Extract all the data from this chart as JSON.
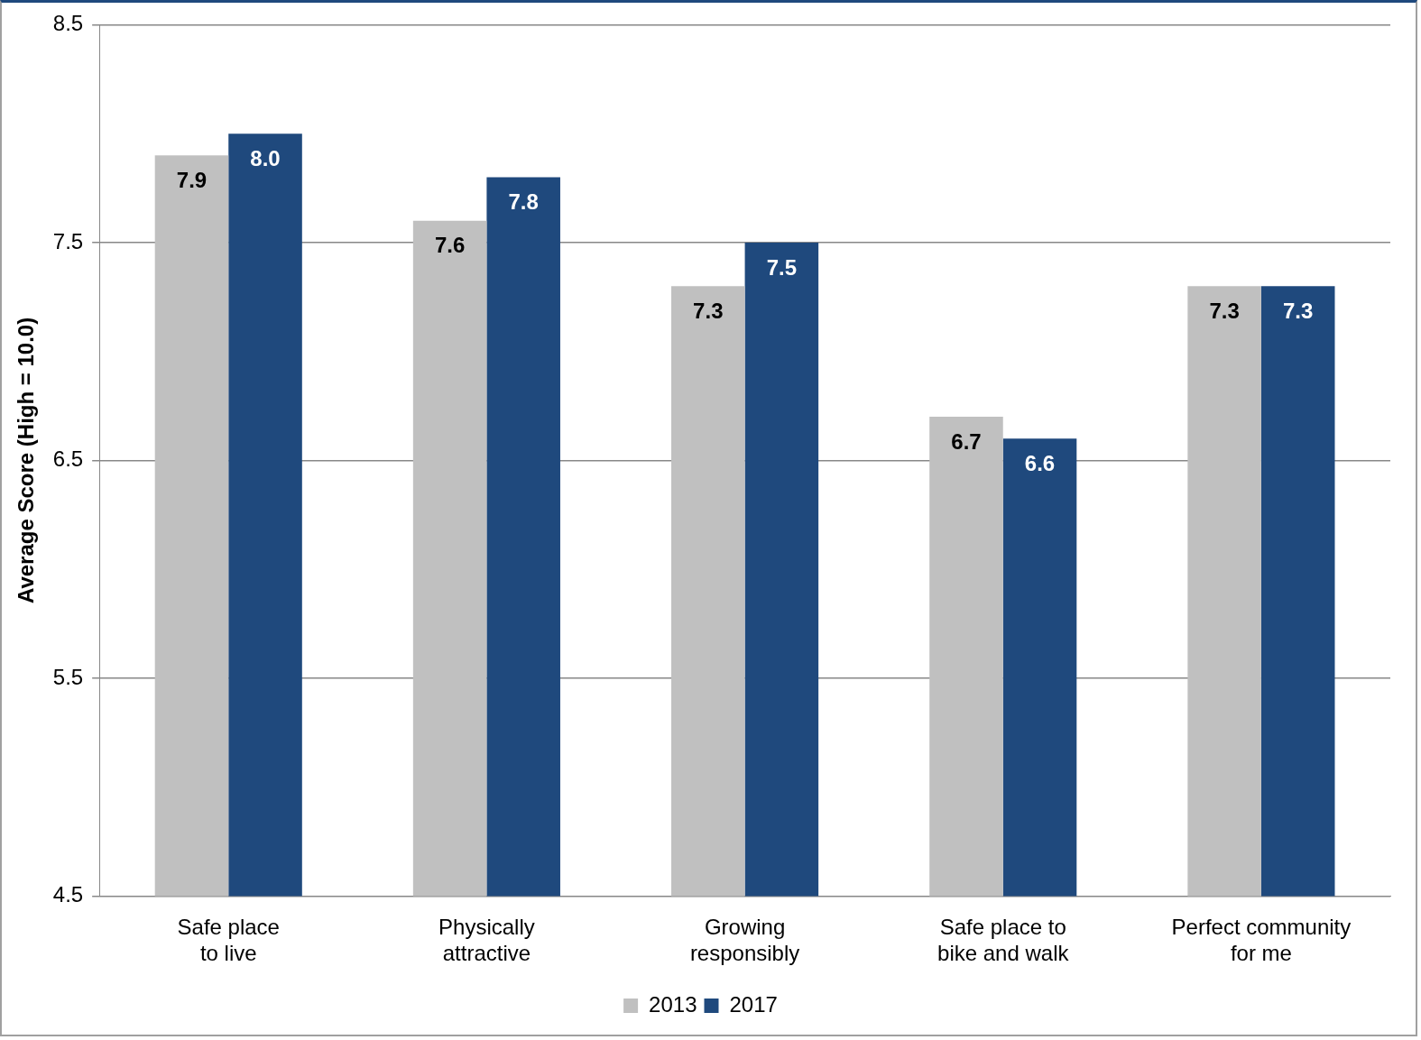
{
  "chart_data": {
    "type": "bar",
    "ylabel": "Average Score (High = 10.0)",
    "categories": [
      "Safe place\nto live",
      "Physically\nattractive",
      "Growing\nresponsibly",
      "Safe place to\nbike and walk",
      "Perfect community\nfor me"
    ],
    "series": [
      {
        "name": "2013",
        "color": "#c0c0c0",
        "values": [
          7.9,
          7.6,
          7.3,
          6.7,
          7.3
        ],
        "value_labels": [
          "7.9",
          "7.6",
          "7.3",
          "6.7",
          "7.3"
        ]
      },
      {
        "name": "2017",
        "color": "#1f497d",
        "values": [
          8.0,
          7.8,
          7.5,
          6.6,
          7.3
        ],
        "value_labels": [
          "8.0",
          "7.8",
          "7.5",
          "6.6",
          "7.3"
        ]
      }
    ],
    "ylim": [
      4.5,
      8.5
    ],
    "yticks": [
      4.5,
      5.5,
      6.5,
      7.5,
      8.5
    ],
    "grid": "y",
    "legend": "bottom"
  }
}
